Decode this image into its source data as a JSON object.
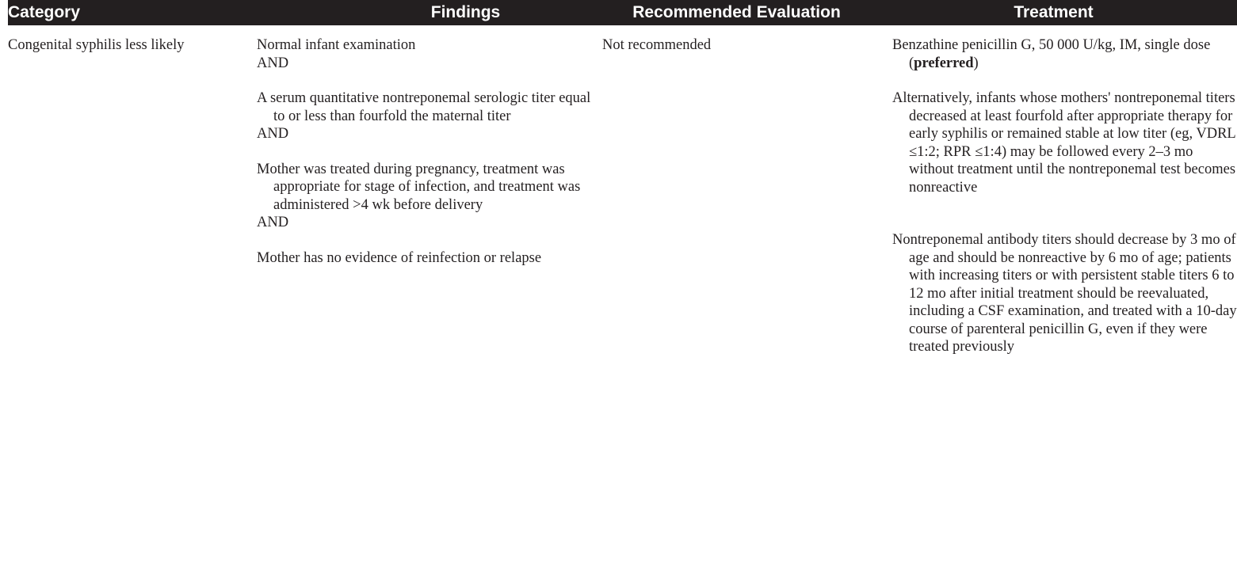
{
  "headers": {
    "category": "Category",
    "findings": "Findings",
    "evaluation": "Recommended Evaluation",
    "treatment": "Treatment"
  },
  "row": {
    "category": "Congenital syphilis less likely",
    "findings": {
      "f1": "Normal infant examination",
      "and1": "AND",
      "f2": "A serum quantitative nontreponemal serologic titer equal to or less than fourfold the maternal titer",
      "and2": "AND",
      "f3": "Mother was treated during pregnancy, treatment was appropriate for stage of infection, and treatment was administered >4 wk before delivery",
      "and3": "AND",
      "f4": "Mother has no evidence of reinfection or relapse"
    },
    "evaluation": "Not recommended",
    "treatment": {
      "t1_pre": "Benzathine penicillin G, 50 000 U/kg, IM, single dose (",
      "t1_bold": "preferred",
      "t1_post": ")",
      "t2": "Alternatively, infants whose mothers' nontreponemal titers decreased at least fourfold after appropriate therapy for early syphilis or remained stable at low titer (eg, VDRL ≤1:2; RPR ≤1:4) may be followed every 2–3 mo without treatment until the nontreponemal test becomes nonreactive",
      "t3": "Nontreponemal antibody titers should decrease by 3 mo of age and should be nonreactive by 6 mo of age; patients with increasing titers or with persistent stable titers 6 to 12 mo after initial treatment should be reevaluated, including a CSF examination, and treated with a 10-day course of parenteral penicillin G, even if they were treated previously"
    }
  }
}
